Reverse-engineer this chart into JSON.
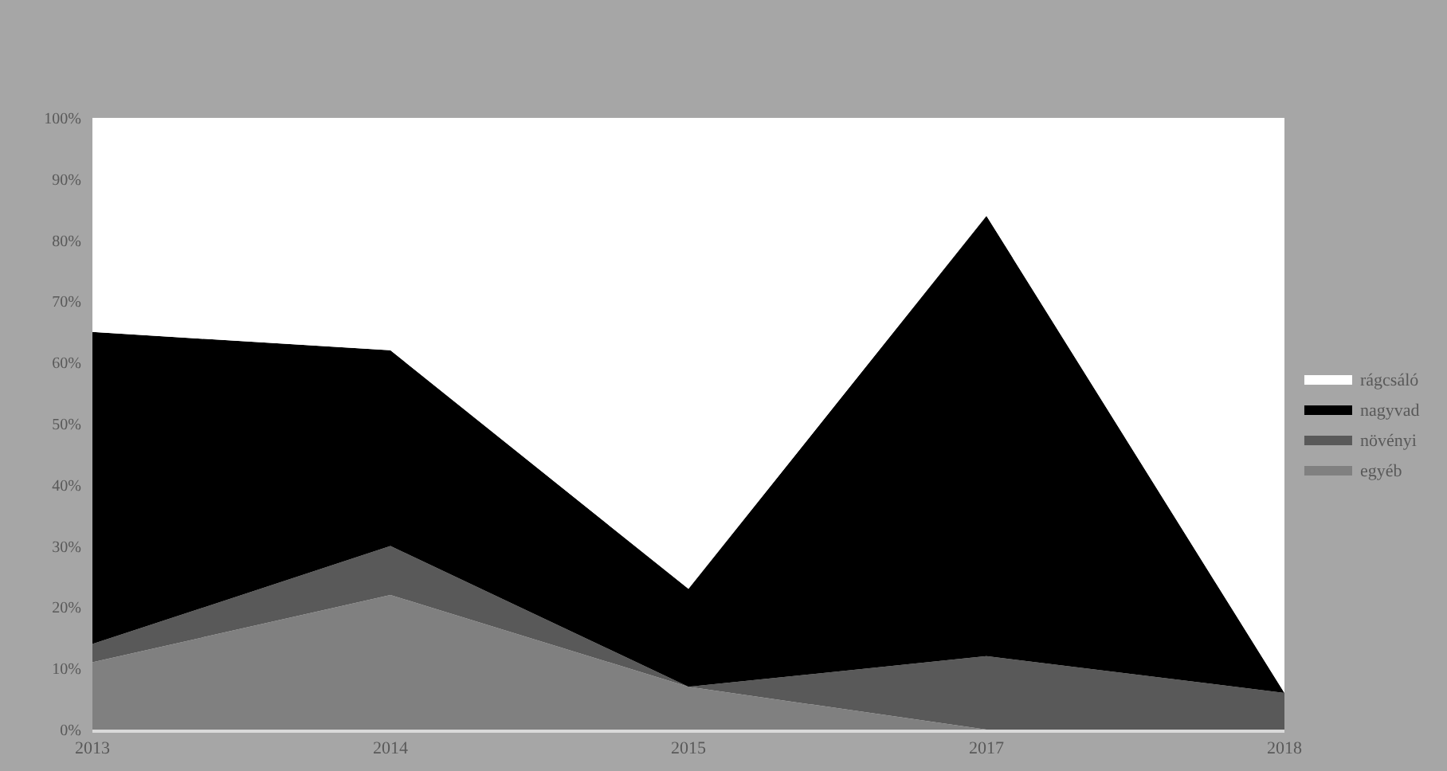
{
  "chart_data": {
    "type": "area",
    "stacked": true,
    "legend": "right",
    "categories": [
      "2013",
      "2014",
      "2015",
      "2017",
      "2018"
    ],
    "series": [
      {
        "name": "egyéb",
        "color": "#808080",
        "values": [
          11,
          22,
          7,
          0,
          0
        ]
      },
      {
        "name": "növényi",
        "color": "#595959",
        "values": [
          3,
          8,
          0,
          12,
          6
        ]
      },
      {
        "name": "nagyvad",
        "color": "#000000",
        "values": [
          51,
          32,
          16,
          72,
          0
        ]
      },
      {
        "name": "rágcsáló",
        "color": "#ffffff",
        "values": [
          35,
          38,
          77,
          16,
          94
        ]
      }
    ],
    "ylim": [
      0,
      100
    ],
    "yticks": [
      {
        "value": 0,
        "label": "0%"
      },
      {
        "value": 10,
        "label": "10%"
      },
      {
        "value": 20,
        "label": "20%"
      },
      {
        "value": 30,
        "label": "30%"
      },
      {
        "value": 40,
        "label": "40%"
      },
      {
        "value": 50,
        "label": "50%"
      },
      {
        "value": 60,
        "label": "60%"
      },
      {
        "value": 70,
        "label": "70%"
      },
      {
        "value": 80,
        "label": "80%"
      },
      {
        "value": 90,
        "label": "90%"
      },
      {
        "value": 100,
        "label": "100%"
      }
    ]
  }
}
